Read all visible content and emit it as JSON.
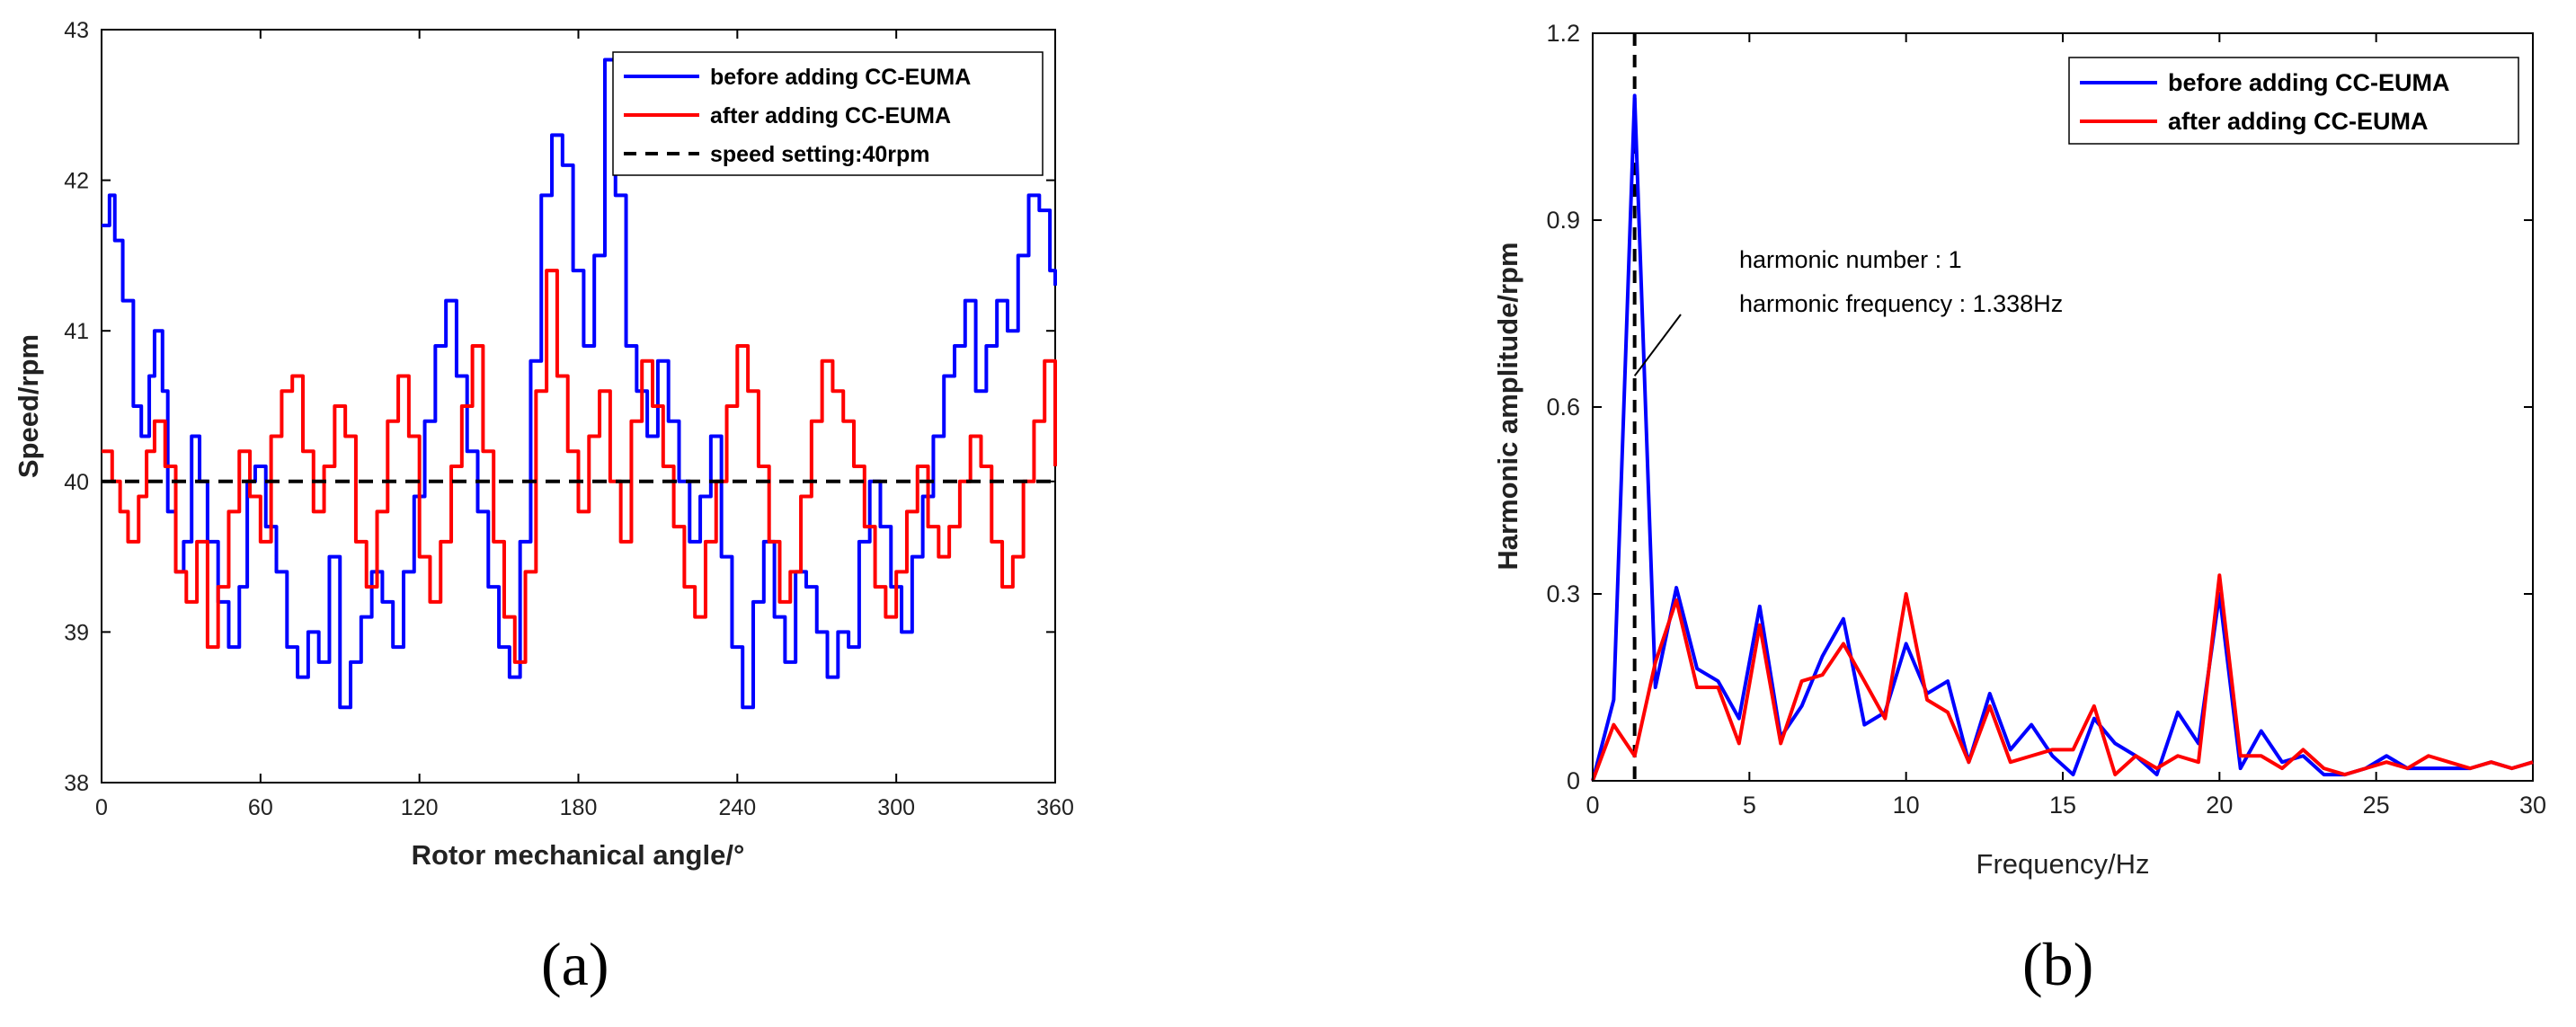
{
  "figure": {
    "panels": [
      "(a)",
      "(b)"
    ]
  },
  "chart_data": [
    {
      "type": "line",
      "panel_label": "(a)",
      "title": "",
      "xlabel": "Rotor mechanical angle/°",
      "ylabel": "Speed/rpm",
      "xlim": [
        0,
        360
      ],
      "ylim": [
        38,
        43
      ],
      "xticks": [
        "0",
        "60",
        "120",
        "180",
        "240",
        "300",
        "360"
      ],
      "yticks": [
        "38",
        "39",
        "40",
        "41",
        "42",
        "43"
      ],
      "legend": {
        "placement": "top-right"
      },
      "colors": {
        "before": "#0000ff",
        "after": "#ff0000",
        "setpoint": "#000000"
      },
      "series": [
        {
          "name": "before adding CC-EUMA",
          "color": "#0000ff",
          "style": "step",
          "x": [
            0,
            3,
            5,
            8,
            12,
            15,
            18,
            20,
            23,
            25,
            28,
            31,
            34,
            37,
            40,
            44,
            48,
            52,
            55,
            58,
            62,
            66,
            70,
            74,
            78,
            82,
            86,
            90,
            94,
            98,
            102,
            106,
            110,
            114,
            118,
            122,
            126,
            130,
            134,
            138,
            142,
            146,
            150,
            154,
            158,
            162,
            166,
            170,
            174,
            178,
            182,
            186,
            190,
            194,
            198,
            202,
            206,
            210,
            214,
            218,
            222,
            226,
            230,
            234,
            238,
            242,
            246,
            250,
            254,
            258,
            262,
            266,
            270,
            274,
            278,
            282,
            286,
            290,
            294,
            298,
            302,
            306,
            310,
            314,
            318,
            322,
            326,
            330,
            334,
            338,
            342,
            346,
            350,
            354,
            358,
            360
          ],
          "values": [
            41.7,
            41.9,
            41.6,
            41.2,
            40.5,
            40.3,
            40.7,
            41.0,
            40.6,
            39.8,
            39.4,
            39.6,
            40.3,
            40.0,
            39.6,
            39.2,
            38.9,
            39.3,
            40.0,
            40.1,
            39.7,
            39.4,
            38.9,
            38.7,
            39.0,
            38.8,
            39.5,
            38.5,
            38.8,
            39.1,
            39.4,
            39.2,
            38.9,
            39.4,
            39.9,
            40.4,
            40.9,
            41.2,
            40.7,
            40.2,
            39.8,
            39.3,
            38.9,
            38.7,
            39.6,
            40.8,
            41.9,
            42.3,
            42.1,
            41.4,
            40.9,
            41.5,
            42.8,
            41.9,
            40.9,
            40.6,
            40.3,
            40.8,
            40.4,
            40.0,
            39.6,
            39.9,
            40.3,
            39.5,
            38.9,
            38.5,
            39.2,
            39.6,
            39.1,
            38.8,
            39.4,
            39.3,
            39.0,
            38.7,
            39.0,
            38.9,
            39.6,
            40.0,
            39.7,
            39.3,
            39.0,
            39.5,
            39.9,
            40.3,
            40.7,
            40.9,
            41.2,
            40.6,
            40.9,
            41.2,
            41.0,
            41.5,
            41.9,
            41.8,
            41.4,
            41.3
          ]
        },
        {
          "name": "after adding CC-EUMA",
          "color": "#ff0000",
          "style": "step",
          "x": [
            0,
            4,
            7,
            10,
            14,
            17,
            20,
            24,
            28,
            32,
            36,
            40,
            44,
            48,
            52,
            56,
            60,
            64,
            68,
            72,
            76,
            80,
            84,
            88,
            92,
            96,
            100,
            104,
            108,
            112,
            116,
            120,
            124,
            128,
            132,
            136,
            140,
            144,
            148,
            152,
            156,
            160,
            164,
            168,
            172,
            176,
            180,
            184,
            188,
            192,
            196,
            200,
            204,
            208,
            212,
            216,
            220,
            224,
            228,
            232,
            236,
            240,
            244,
            248,
            252,
            256,
            260,
            264,
            268,
            272,
            276,
            280,
            284,
            288,
            292,
            296,
            300,
            304,
            308,
            312,
            316,
            320,
            324,
            328,
            332,
            336,
            340,
            344,
            348,
            352,
            356,
            360
          ],
          "values": [
            40.2,
            40.0,
            39.8,
            39.6,
            39.9,
            40.2,
            40.4,
            40.1,
            39.4,
            39.2,
            39.6,
            38.9,
            39.3,
            39.8,
            40.2,
            39.9,
            39.6,
            40.3,
            40.6,
            40.7,
            40.2,
            39.8,
            40.1,
            40.5,
            40.3,
            39.6,
            39.3,
            39.8,
            40.4,
            40.7,
            40.3,
            39.5,
            39.2,
            39.6,
            40.1,
            40.5,
            40.9,
            40.2,
            39.6,
            39.1,
            38.8,
            39.4,
            40.6,
            41.4,
            40.7,
            40.2,
            39.8,
            40.3,
            40.6,
            40.0,
            39.6,
            40.4,
            40.8,
            40.5,
            40.1,
            39.7,
            39.3,
            39.1,
            39.6,
            40.0,
            40.5,
            40.9,
            40.6,
            40.1,
            39.6,
            39.2,
            39.4,
            39.9,
            40.4,
            40.8,
            40.6,
            40.4,
            40.1,
            39.7,
            39.3,
            39.1,
            39.4,
            39.8,
            40.1,
            39.7,
            39.5,
            39.7,
            40.0,
            40.3,
            40.1,
            39.6,
            39.3,
            39.5,
            40.0,
            40.4,
            40.8,
            40.1
          ]
        },
        {
          "name": "speed setting:40rpm",
          "color": "#000000",
          "style": "dashed",
          "x": [
            0,
            360
          ],
          "values": [
            40,
            40
          ]
        }
      ]
    },
    {
      "type": "line",
      "panel_label": "(b)",
      "title": "",
      "xlabel": "Frequency/Hz",
      "ylabel": "Harmonic amplitude/rpm",
      "xlim": [
        0,
        30
      ],
      "ylim": [
        0,
        1.2
      ],
      "xticks": [
        "0",
        "5",
        "10",
        "15",
        "20",
        "25",
        "30"
      ],
      "yticks": [
        "0",
        "0.3",
        "0.6",
        "0.9",
        "1.2"
      ],
      "legend": {
        "placement": "top-right"
      },
      "annotation": {
        "lines": [
          "harmonic number : 1",
          "harmonic frequency : 1.338Hz"
        ],
        "target_x": 1.338,
        "target_y": 0.65
      },
      "vline": {
        "x": 1.338,
        "style": "dashed",
        "color": "#000000"
      },
      "series": [
        {
          "name": "before adding CC-EUMA",
          "color": "#0000ff",
          "x": [
            0,
            0.67,
            1.338,
            2.0,
            2.67,
            3.33,
            4.0,
            4.67,
            5.33,
            6.0,
            6.67,
            7.33,
            8.0,
            8.67,
            9.33,
            10.0,
            10.67,
            11.33,
            12.0,
            12.67,
            13.33,
            14.0,
            14.67,
            15.33,
            16.0,
            16.67,
            17.33,
            18.0,
            18.67,
            19.33,
            20.0,
            20.67,
            21.33,
            22.0,
            22.67,
            23.33,
            24.0,
            24.67,
            25.33,
            26.0,
            26.67,
            27.33,
            28.0,
            28.67,
            29.33,
            30.0
          ],
          "values": [
            0.0,
            0.13,
            1.1,
            0.15,
            0.31,
            0.18,
            0.16,
            0.1,
            0.28,
            0.07,
            0.12,
            0.2,
            0.26,
            0.09,
            0.11,
            0.22,
            0.14,
            0.16,
            0.03,
            0.14,
            0.05,
            0.09,
            0.04,
            0.01,
            0.1,
            0.06,
            0.04,
            0.01,
            0.11,
            0.06,
            0.3,
            0.02,
            0.08,
            0.03,
            0.04,
            0.01,
            0.01,
            0.02,
            0.04,
            0.02,
            0.02,
            0.02,
            0.02,
            0.03,
            0.02,
            0.03
          ]
        },
        {
          "name": "after adding CC-EUMA",
          "color": "#ff0000",
          "x": [
            0,
            0.67,
            1.338,
            2.0,
            2.67,
            3.33,
            4.0,
            4.67,
            5.33,
            6.0,
            6.67,
            7.33,
            8.0,
            8.67,
            9.33,
            10.0,
            10.67,
            11.33,
            12.0,
            12.67,
            13.33,
            14.0,
            14.67,
            15.33,
            16.0,
            16.67,
            17.33,
            18.0,
            18.67,
            19.33,
            20.0,
            20.67,
            21.33,
            22.0,
            22.67,
            23.33,
            24.0,
            24.67,
            25.33,
            26.0,
            26.67,
            27.33,
            28.0,
            28.67,
            29.33,
            30.0
          ],
          "values": [
            0.0,
            0.09,
            0.04,
            0.19,
            0.29,
            0.15,
            0.15,
            0.06,
            0.25,
            0.06,
            0.16,
            0.17,
            0.22,
            0.16,
            0.1,
            0.3,
            0.13,
            0.11,
            0.03,
            0.12,
            0.03,
            0.04,
            0.05,
            0.05,
            0.12,
            0.01,
            0.04,
            0.02,
            0.04,
            0.03,
            0.33,
            0.04,
            0.04,
            0.02,
            0.05,
            0.02,
            0.01,
            0.02,
            0.03,
            0.02,
            0.04,
            0.03,
            0.02,
            0.03,
            0.02,
            0.03
          ]
        }
      ]
    }
  ]
}
